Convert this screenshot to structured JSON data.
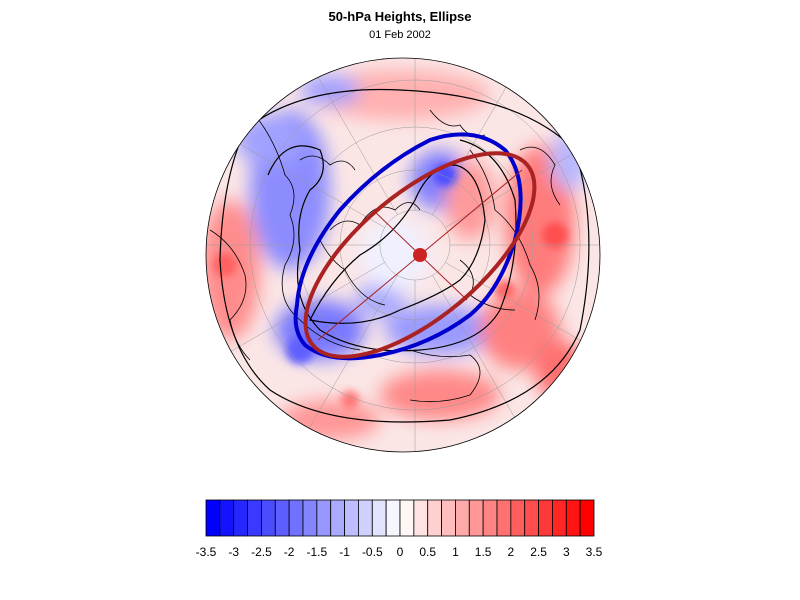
{
  "figure": {
    "title": "50-hPa Heights, Ellipse",
    "subtitle": "01 Feb 2002"
  },
  "map": {
    "projection": "polar-stereographic",
    "field": "anomaly",
    "colormap": "blue-white-red",
    "contour_color": "#000000",
    "coastline_color": "#000000",
    "gridline_color": "#999999",
    "observed_ellipse_color": "#0000cc",
    "fitted_ellipse_color": "#aa2222",
    "ellipse_center_color": "#cc2222"
  },
  "colorbar": {
    "levels": [
      -3.5,
      -3.25,
      -3,
      -2.75,
      -2.5,
      -2.25,
      -2,
      -1.75,
      -1.5,
      -1.25,
      -1,
      -0.75,
      -0.5,
      -0.25,
      0,
      0.25,
      0.5,
      0.75,
      1,
      1.25,
      1.5,
      1.75,
      2,
      2.25,
      2.5,
      2.75,
      3,
      3.25,
      3.5
    ],
    "tick_labels": [
      "-3.5",
      "-3",
      "-2.5",
      "-2",
      "-1.5",
      "-1",
      "-0.5",
      "0",
      "0.5",
      "1",
      "1.5",
      "2",
      "2.5",
      "3",
      "3.5"
    ]
  }
}
